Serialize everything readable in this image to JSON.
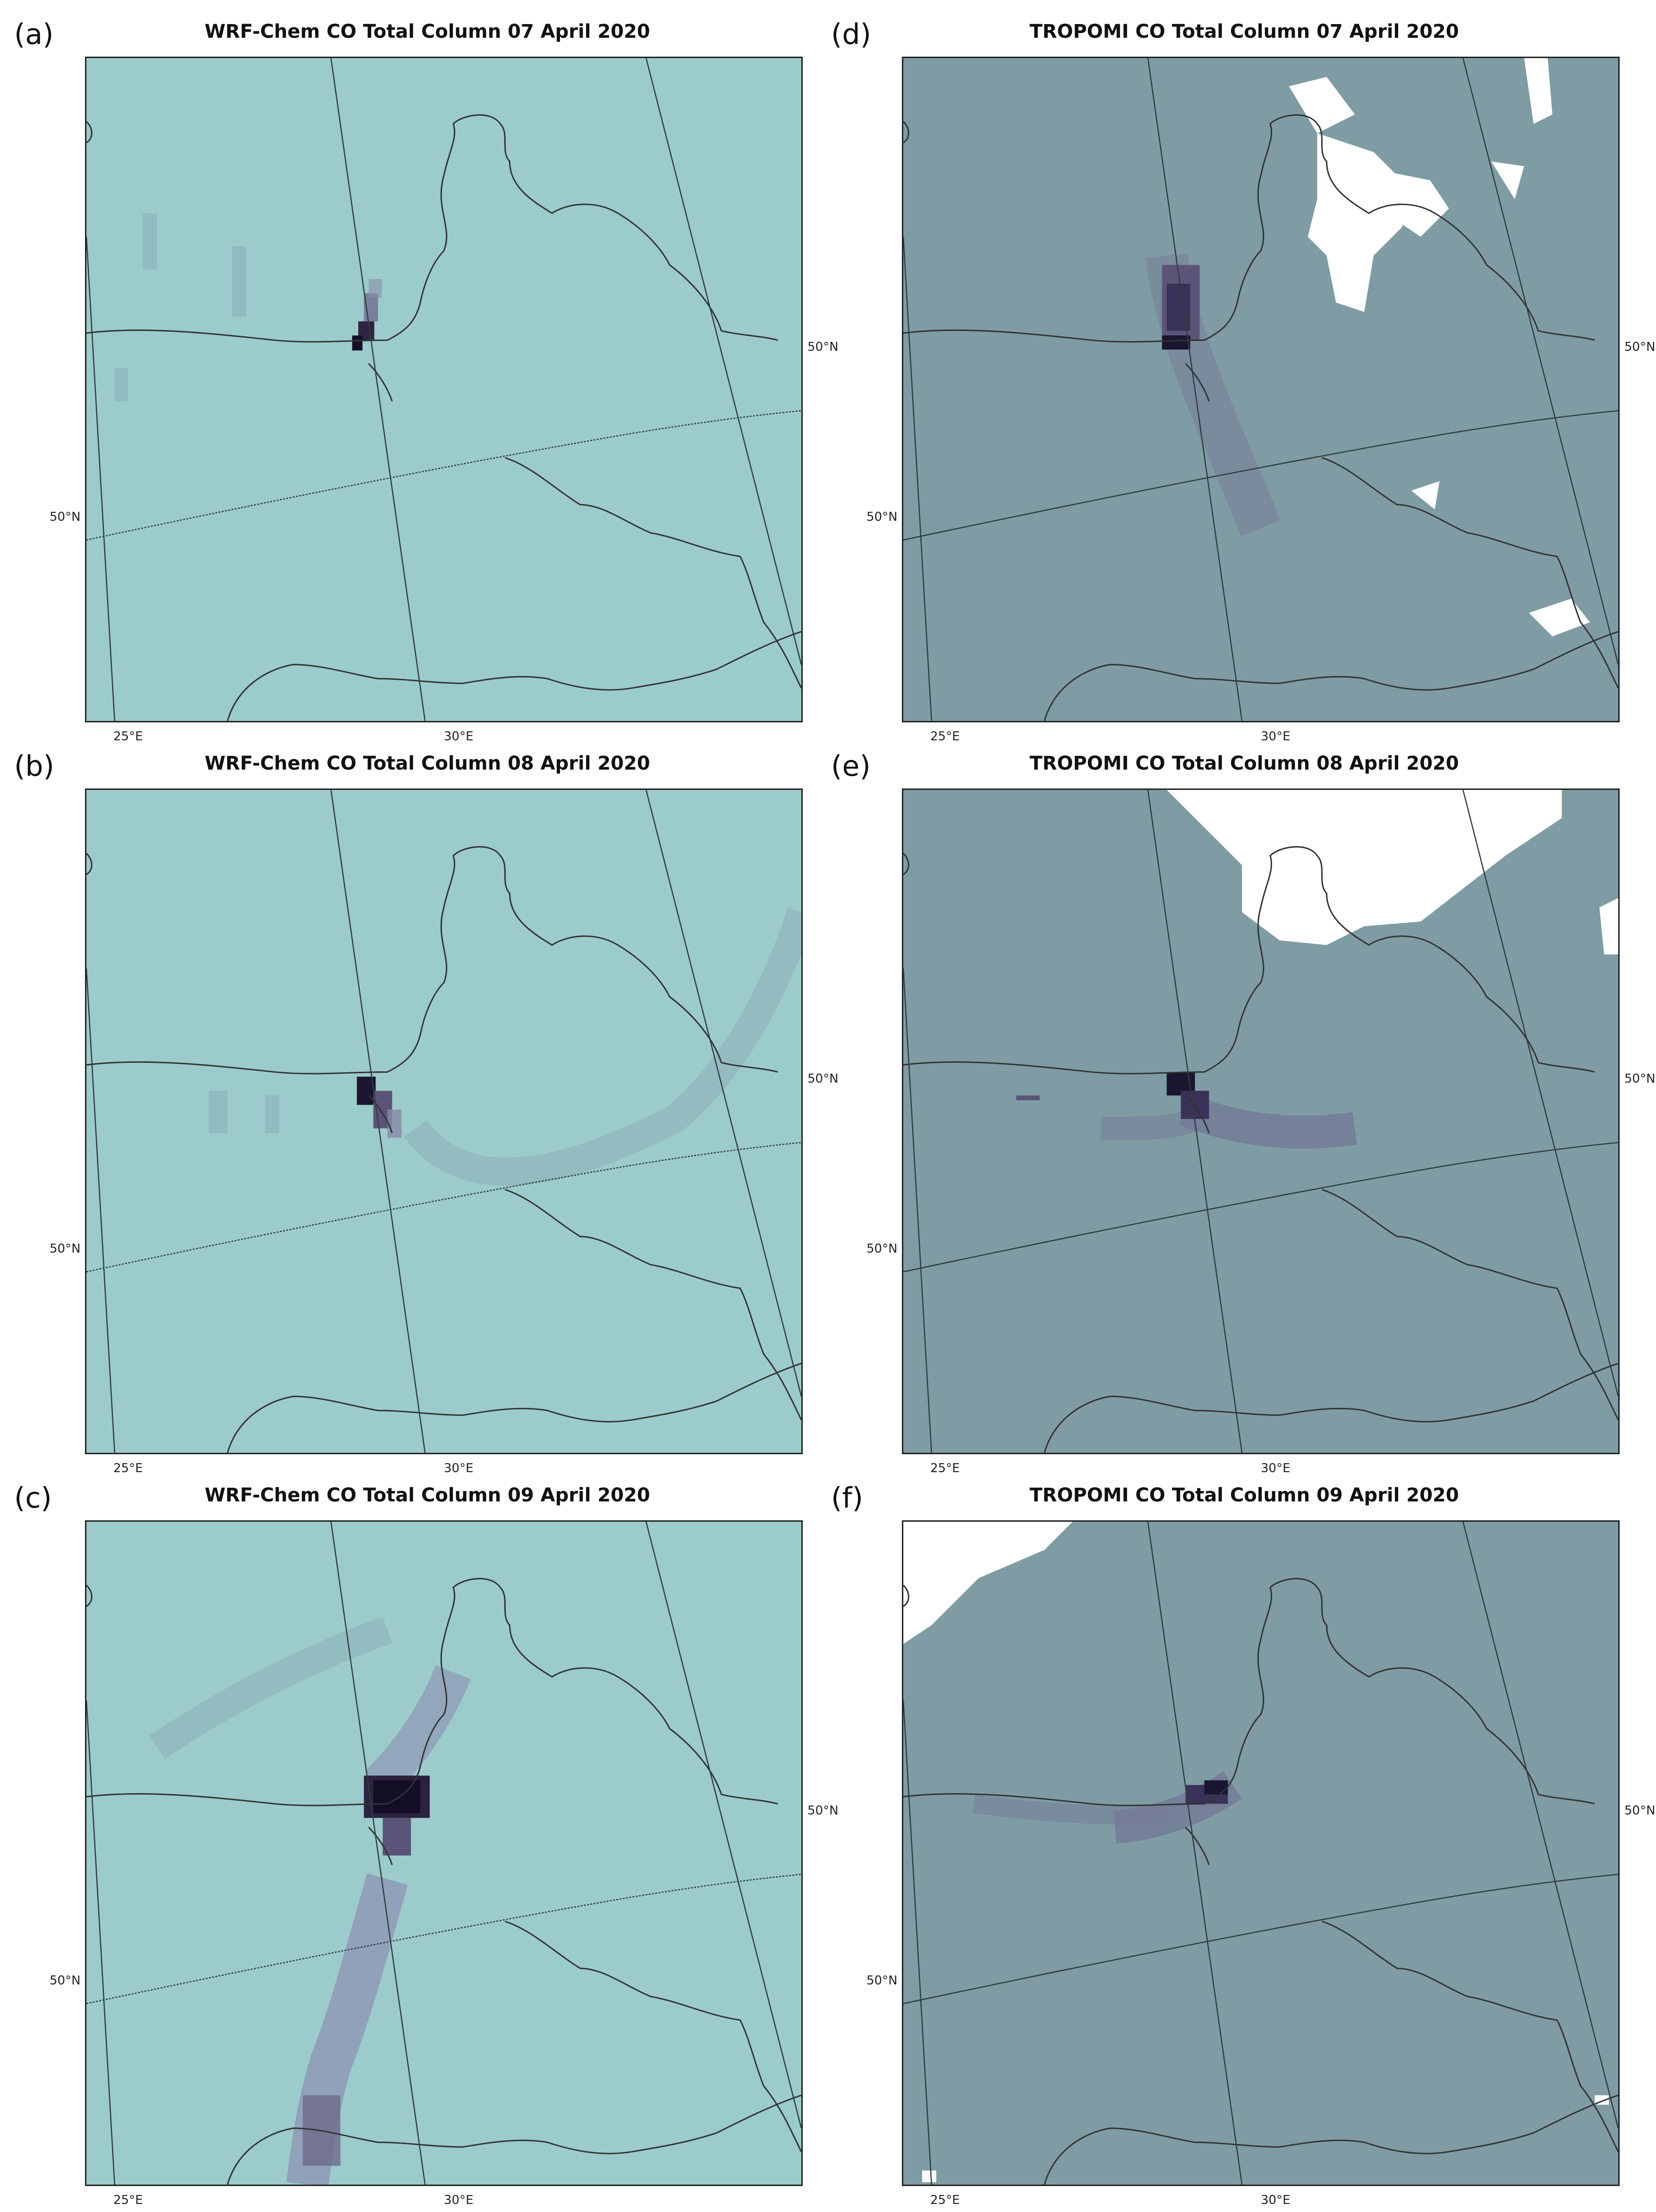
{
  "panels": [
    {
      "id": "a",
      "label": "(a)",
      "title": "WRF-Chem CO Total Column 07 April 2020",
      "model": "wrf",
      "date": "2020-04-07"
    },
    {
      "id": "b",
      "label": "(b)",
      "title": "WRF-Chem CO Total Column 08 April 2020",
      "model": "wrf",
      "date": "2020-04-08"
    },
    {
      "id": "c",
      "label": "(c)",
      "title": "WRF-Chem CO Total Column 09 April 2020",
      "model": "wrf",
      "date": "2020-04-09"
    },
    {
      "id": "d",
      "label": "(d)",
      "title": "TROPOMI CO Total Column 07 April 2020",
      "model": "tropomi",
      "date": "2020-04-07"
    },
    {
      "id": "e",
      "label": "(e)",
      "title": "TROPOMI CO Total Column 08 April 2020",
      "model": "tropomi",
      "date": "2020-04-08"
    },
    {
      "id": "f",
      "label": "(f)",
      "title": "TROPOMI CO Total Column 09 April 2020",
      "model": "tropomi",
      "date": "2020-04-09"
    }
  ],
  "axis_ticks": {
    "lon_25": "25°E",
    "lon_30": "30°E",
    "lat_50_left": "50°N",
    "lat_50_right": "50°N"
  },
  "colors": {
    "wrf_background": "#9ccbcb",
    "tropomi_background": "#7f9ca4",
    "plume_dark": "#1a1530",
    "plume_mid": "#5c5478",
    "cloud_mask": "#ffffff",
    "border_line": "#333333",
    "grid_line": "#2f3d3d"
  }
}
